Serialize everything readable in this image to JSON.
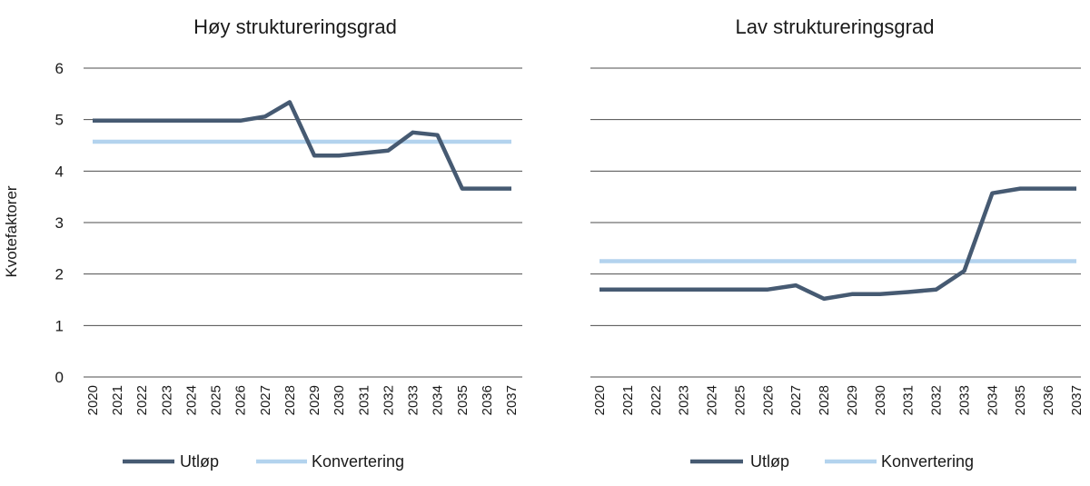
{
  "y_axis_label": "Kvotefaktorer",
  "colors": {
    "utlop": "#465a72",
    "konvertering": "#b3d3ee"
  },
  "chart_data": [
    {
      "type": "line",
      "title": "Høy struktureringsgrad",
      "ylabel": "Kvotefaktorer",
      "ylim": [
        0,
        6
      ],
      "yticks": [
        "0",
        "1",
        "2",
        "3",
        "4",
        "5",
        "6"
      ],
      "grid": true,
      "legend_position": "bottom",
      "x": [
        "2020",
        "2021",
        "2022",
        "2023",
        "2024",
        "2025",
        "2026",
        "2027",
        "2028",
        "2029",
        "2030",
        "2031",
        "2032",
        "2033",
        "2034",
        "2035",
        "2036",
        "2037"
      ],
      "series": [
        {
          "name": "Utløp",
          "values": [
            4.98,
            4.98,
            4.98,
            4.98,
            4.98,
            4.98,
            4.98,
            5.06,
            5.34,
            4.3,
            4.3,
            4.35,
            4.4,
            4.75,
            4.7,
            3.66,
            3.66,
            3.66
          ]
        },
        {
          "name": "Konvertering",
          "values": [
            4.57,
            4.57,
            4.57,
            4.57,
            4.57,
            4.57,
            4.57,
            4.57,
            4.57,
            4.57,
            4.57,
            4.57,
            4.57,
            4.57,
            4.57,
            4.57,
            4.57,
            4.57
          ]
        }
      ]
    },
    {
      "type": "line",
      "title": "Lav struktureringsgrad",
      "ylabel": "",
      "ylim": [
        0,
        6
      ],
      "yticks": [],
      "grid": true,
      "legend_position": "bottom",
      "x": [
        "2020",
        "2021",
        "2022",
        "2023",
        "2024",
        "2025",
        "2026",
        "2027",
        "2028",
        "2029",
        "2030",
        "2031",
        "2032",
        "2033",
        "2034",
        "2035",
        "2036",
        "2037"
      ],
      "series": [
        {
          "name": "Utløp",
          "values": [
            1.7,
            1.7,
            1.7,
            1.7,
            1.7,
            1.7,
            1.7,
            1.78,
            1.52,
            1.61,
            1.61,
            1.65,
            1.7,
            2.06,
            3.57,
            3.66,
            3.66,
            3.66
          ]
        },
        {
          "name": "Konvertering",
          "values": [
            2.25,
            2.25,
            2.25,
            2.25,
            2.25,
            2.25,
            2.25,
            2.25,
            2.25,
            2.25,
            2.25,
            2.25,
            2.25,
            2.25,
            2.25,
            2.25,
            2.25,
            2.25
          ]
        }
      ]
    }
  ]
}
